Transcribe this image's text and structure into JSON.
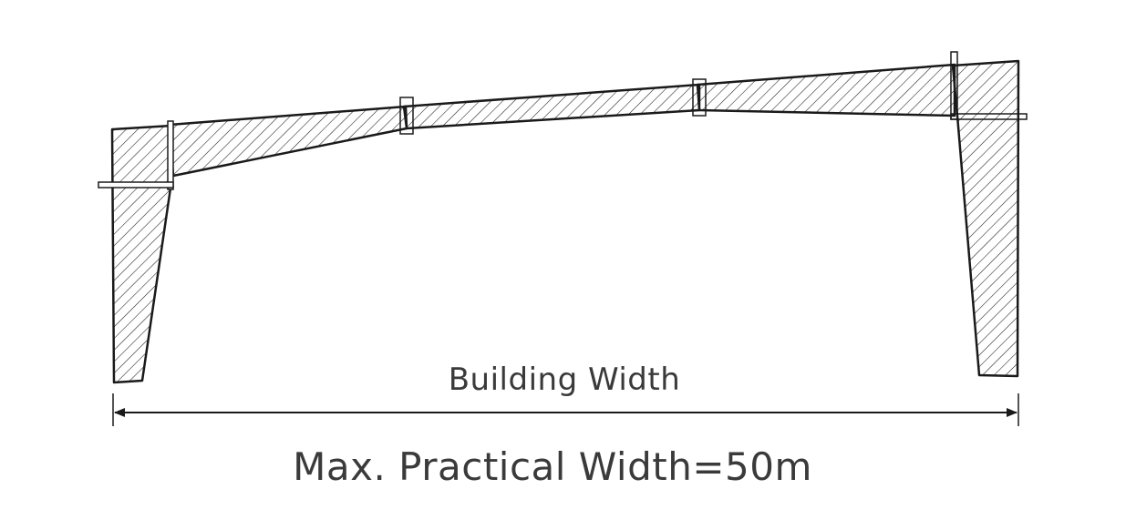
{
  "diagram": {
    "dimension_label": "Building Width",
    "caption": "Max. Practical Width=50m",
    "colors": {
      "line": "#1a1a1a",
      "text": "#3a3a3a",
      "background": "#ffffff"
    }
  }
}
